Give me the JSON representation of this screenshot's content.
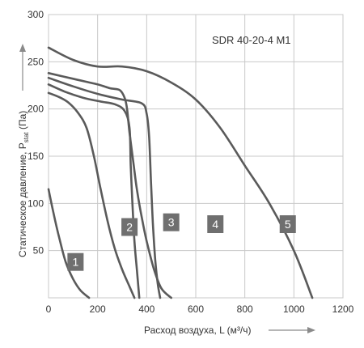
{
  "chart_data": {
    "type": "line",
    "model_label": "SDR 40-20-4 M1",
    "xlabel": "Расход воздуха, L (м³/ч)",
    "ylabel": "Статическое давление, Pstat (Па)",
    "ylabel_main": "Статическое давление, P",
    "ylabel_sub": "stat",
    "ylabel_unit": " (Па)",
    "xlim": [
      0,
      1200
    ],
    "ylim": [
      0,
      300
    ],
    "x_ticks": [
      0,
      200,
      400,
      600,
      800,
      1000,
      1200
    ],
    "y_ticks": [
      50,
      100,
      150,
      200,
      250,
      300
    ],
    "grid": true,
    "series": [
      {
        "name": "1",
        "points": [
          [
            0,
            115
          ],
          [
            20,
            90
          ],
          [
            45,
            62
          ],
          [
            70,
            38
          ],
          [
            100,
            20
          ],
          [
            130,
            8
          ],
          [
            165,
            0
          ]
        ],
        "label_at": [
          100,
          18
        ]
      },
      {
        "name": "2",
        "points": [
          [
            0,
            217
          ],
          [
            40,
            213
          ],
          [
            80,
            207
          ],
          [
            120,
            196
          ],
          [
            155,
            180
          ],
          [
            185,
            150
          ],
          [
            210,
            118
          ],
          [
            240,
            82
          ],
          [
            270,
            52
          ],
          [
            300,
            30
          ],
          [
            330,
            12
          ],
          [
            350,
            0
          ]
        ],
        "label_at": [
          320,
          35
        ]
      },
      {
        "name": "3",
        "points": [
          [
            0,
            226
          ],
          [
            70,
            218
          ],
          [
            140,
            212
          ],
          [
            210,
            208
          ],
          [
            270,
            205
          ],
          [
            310,
            198
          ],
          [
            330,
            180
          ],
          [
            335,
            140
          ],
          [
            342,
            100
          ],
          [
            350,
            60
          ],
          [
            360,
            30
          ],
          [
            370,
            0
          ]
        ],
        "label_at": [
          460,
          38
        ]
      },
      {
        "name": "4",
        "points": [
          [
            0,
            233
          ],
          [
            100,
            224
          ],
          [
            200,
            216
          ],
          [
            300,
            210
          ],
          [
            380,
            206
          ],
          [
            400,
            195
          ],
          [
            410,
            170
          ],
          [
            418,
            120
          ],
          [
            425,
            80
          ],
          [
            435,
            40
          ],
          [
            445,
            15
          ],
          [
            455,
            0
          ]
        ],
        "label_at": [
          640,
          38
        ]
      },
      {
        "name": "5",
        "points": [
          [
            0,
            238
          ],
          [
            100,
            232
          ],
          [
            200,
            226
          ],
          [
            250,
            222
          ],
          [
            290,
            220
          ],
          [
            310,
            212
          ],
          [
            320,
            200
          ],
          [
            330,
            175
          ],
          [
            345,
            145
          ],
          [
            360,
            115
          ],
          [
            380,
            85
          ],
          [
            400,
            60
          ],
          [
            430,
            30
          ],
          [
            460,
            10
          ],
          [
            500,
            0
          ]
        ],
        "label_at": [
          960,
          38
        ]
      },
      {
        "name": "",
        "points": [
          [
            0,
            265
          ],
          [
            100,
            252
          ],
          [
            200,
            245
          ],
          [
            300,
            245
          ],
          [
            400,
            240
          ],
          [
            500,
            228
          ],
          [
            600,
            210
          ],
          [
            700,
            180
          ],
          [
            800,
            140
          ],
          [
            900,
            100
          ],
          [
            1000,
            50
          ],
          [
            1075,
            0
          ]
        ],
        "label_at": null
      }
    ],
    "badges": [
      {
        "text": "1",
        "x": 110,
        "y": 38
      },
      {
        "text": "2",
        "x": 330,
        "y": 75
      },
      {
        "text": "3",
        "x": 500,
        "y": 80
      },
      {
        "text": "4",
        "x": 680,
        "y": 78
      },
      {
        "text": "5",
        "x": 975,
        "y": 78
      }
    ]
  }
}
